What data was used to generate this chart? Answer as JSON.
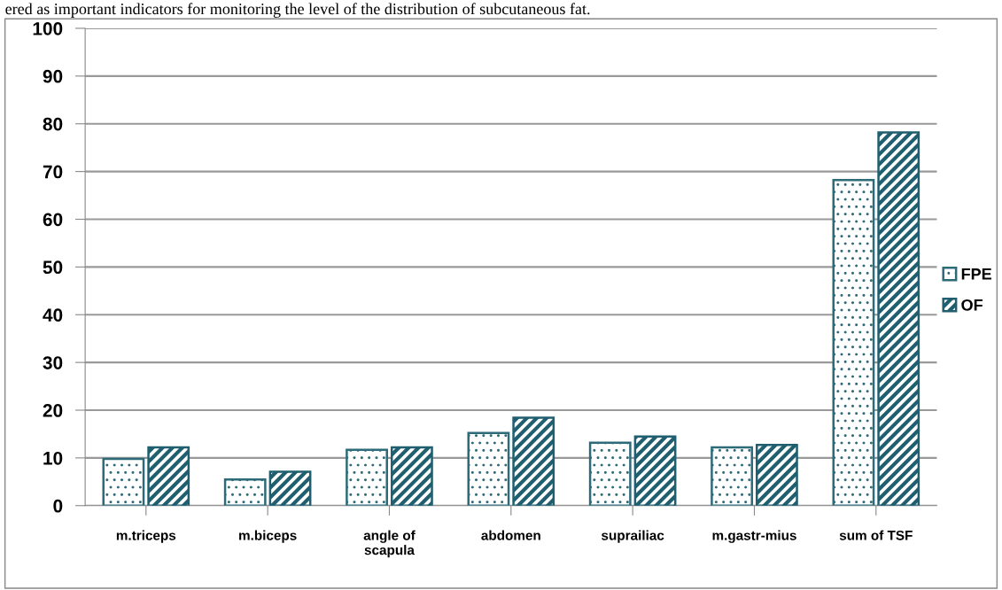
{
  "chart_data": {
    "type": "bar",
    "categories": [
      "m.triceps",
      "m.biceps",
      "angle of\nscapula",
      "abdomen",
      "suprailiac",
      "m.gastr-mius",
      "sum of TSF"
    ],
    "series": [
      {
        "name": "FPE",
        "color": "#2e6b78",
        "values": [
          9.8,
          5.5,
          11.7,
          15.2,
          13.2,
          12.2,
          68.2
        ]
      },
      {
        "name": "OF",
        "color": "#1f5f6f",
        "values": [
          12.2,
          7.1,
          12.2,
          18.4,
          14.5,
          12.7,
          78.2
        ]
      }
    ],
    "ylim": [
      0,
      100
    ],
    "yticks": [
      0,
      10,
      20,
      30,
      40,
      50,
      60,
      70,
      80,
      90,
      100
    ],
    "grid": "y",
    "legend": "right",
    "annotations": [
      "ered as important indicators for monitoring the level of the distribution of subcutaneous fat."
    ]
  }
}
